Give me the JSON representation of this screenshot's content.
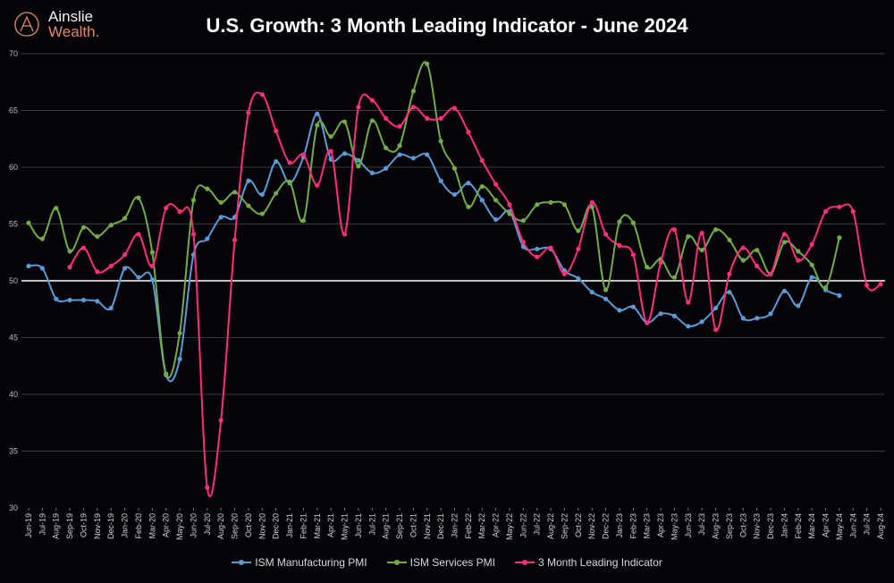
{
  "logo": {
    "line1": "Ainslie",
    "line2": "Wealth."
  },
  "chart_data": {
    "type": "line",
    "title": "U.S. Growth: 3 Month Leading Indicator - June 2024",
    "ylim": [
      30,
      70
    ],
    "yticks": [
      30,
      35,
      40,
      45,
      50,
      55,
      60,
      65,
      70
    ],
    "reference_line": 50,
    "grid": true,
    "legend": "bottom",
    "categories": [
      "Jun-19",
      "Jul-19",
      "Aug-19",
      "Sep-19",
      "Oct-19",
      "Nov-19",
      "Dec-19",
      "Jan-20",
      "Feb-20",
      "Mar-20",
      "Apr-20",
      "May-20",
      "Jun-20",
      "Jul-20",
      "Aug-20",
      "Sep-20",
      "Oct-20",
      "Nov-20",
      "Dec-20",
      "Jan-21",
      "Feb-21",
      "Mar-21",
      "Apr-21",
      "May-21",
      "Jun-21",
      "Jul-21",
      "Aug-21",
      "Sep-21",
      "Oct-21",
      "Nov-21",
      "Dec-21",
      "Jan-22",
      "Feb-22",
      "Mar-22",
      "Apr-22",
      "May-22",
      "Jun-22",
      "Jul-22",
      "Aug-22",
      "Sep-22",
      "Oct-22",
      "Nov-22",
      "Dec-22",
      "Jan-23",
      "Feb-23",
      "Mar-23",
      "Apr-23",
      "May-23",
      "Jun-23",
      "Jul-23",
      "Aug-23",
      "Sep-23",
      "Oct-23",
      "Nov-23",
      "Dec-23",
      "Jan-24",
      "Feb-24",
      "Mar-24",
      "Apr-24",
      "May-24",
      "Jun-24",
      "Jul-24",
      "Aug-24"
    ],
    "series": [
      {
        "name": "ISM Manufacturing PMI",
        "color": "#5b9bd5",
        "values": [
          51.3,
          51.1,
          48.4,
          48.3,
          48.3,
          48.2,
          47.6,
          51.1,
          50.3,
          50.1,
          41.7,
          43.1,
          52.3,
          53.7,
          55.6,
          55.6,
          58.8,
          57.6,
          60.5,
          58.6,
          60.9,
          64.7,
          60.7,
          61.2,
          60.6,
          59.5,
          59.9,
          61.1,
          60.8,
          61.1,
          58.8,
          57.6,
          58.6,
          57.1,
          55.4,
          56.1,
          53.0,
          52.8,
          52.8,
          50.9,
          50.2,
          49.0,
          48.4,
          47.4,
          47.7,
          46.3,
          47.1,
          46.9,
          46.0,
          46.4,
          47.6,
          49.0,
          46.7,
          46.7,
          47.1,
          49.1,
          47.8,
          50.3,
          49.2,
          48.7,
          null,
          null,
          null
        ]
      },
      {
        "name": "ISM Services PMI",
        "color": "#70ad47",
        "values": [
          55.1,
          53.7,
          56.4,
          52.6,
          54.7,
          53.9,
          54.9,
          55.5,
          57.3,
          52.5,
          41.8,
          45.4,
          57.1,
          58.1,
          56.9,
          57.8,
          56.6,
          55.9,
          57.7,
          58.7,
          55.3,
          63.7,
          62.7,
          64.0,
          60.1,
          64.1,
          61.7,
          61.9,
          66.7,
          69.1,
          62.3,
          59.9,
          56.5,
          58.3,
          57.1,
          55.9,
          55.3,
          56.7,
          56.9,
          56.7,
          54.4,
          56.5,
          49.2,
          55.2,
          55.1,
          51.2,
          51.9,
          50.3,
          53.9,
          52.7,
          54.5,
          53.6,
          51.8,
          52.7,
          50.6,
          53.4,
          52.6,
          51.4,
          49.4,
          53.8,
          null,
          null,
          null
        ]
      },
      {
        "name": "3 Month Leading Indicator",
        "color": "#ff2e7e",
        "values": [
          null,
          null,
          null,
          51.2,
          52.9,
          50.8,
          51.3,
          52.3,
          54.1,
          51.3,
          56.4,
          56.1,
          54.1,
          31.8,
          37.7,
          53.6,
          64.8,
          66.4,
          63.2,
          60.4,
          61.1,
          58.4,
          61.4,
          54.1,
          65.3,
          65.9,
          64.3,
          63.6,
          65.3,
          64.3,
          64.3,
          65.2,
          63.1,
          60.6,
          58.5,
          56.7,
          53.4,
          52.1,
          52.9,
          50.6,
          52.8,
          56.9,
          54.1,
          53.1,
          52.3,
          46.3,
          51.6,
          54.5,
          48.1,
          54.2,
          45.7,
          50.6,
          52.9,
          51.3,
          50.6,
          54.1,
          51.8,
          53.2,
          56.1,
          56.5,
          56.1,
          49.6,
          49.7
        ]
      }
    ]
  }
}
